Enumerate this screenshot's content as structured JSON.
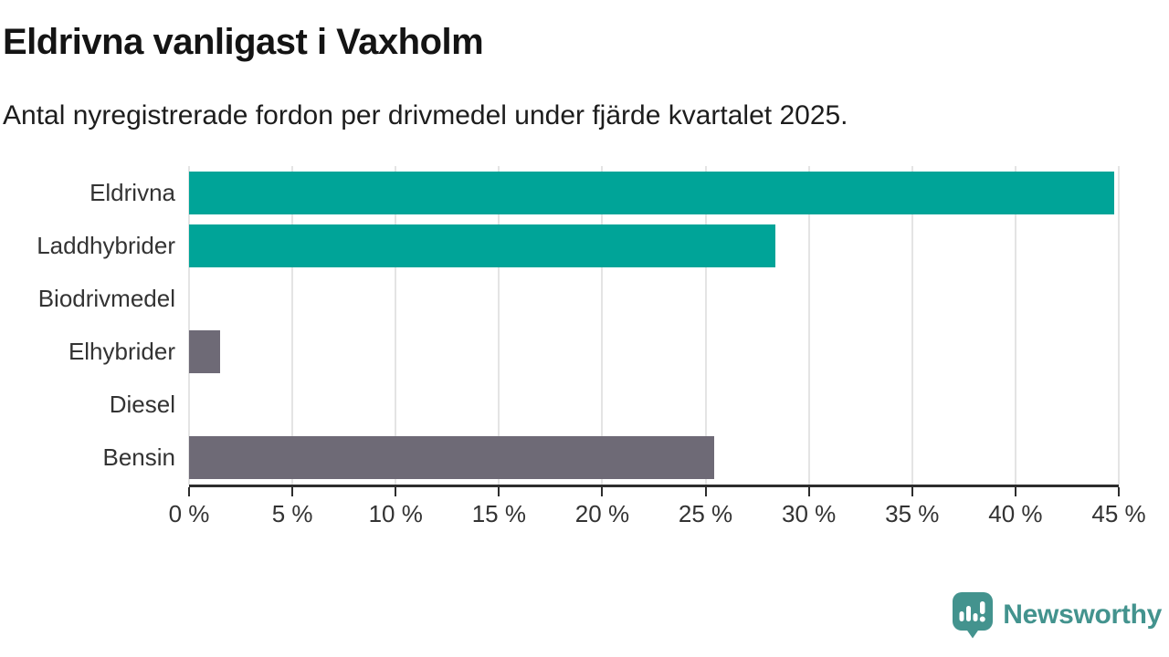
{
  "header": {
    "title": "Eldrivna vanligast i Vaxholm",
    "subtitle": "Antal nyregistrerade fordon per drivmedel under fjärde kvartalet 2025."
  },
  "chart_data": {
    "type": "bar",
    "orientation": "horizontal",
    "title": "Eldrivna vanligast i Vaxholm",
    "subtitle": "Antal nyregistrerade fordon per drivmedel under fjärde kvartalet 2025.",
    "categories": [
      "Eldrivna",
      "Laddhybrider",
      "Biodrivmedel",
      "Elhybrider",
      "Diesel",
      "Bensin"
    ],
    "values": [
      44.8,
      28.4,
      0,
      1.5,
      0,
      25.4
    ],
    "unit": "%",
    "bar_colors": [
      "#00a498",
      "#00a498",
      "#6e6a76",
      "#6e6a76",
      "#6e6a76",
      "#6e6a76"
    ],
    "series_colors": {
      "electric": "#00a498",
      "fossil": "#6e6a76"
    },
    "xlim": [
      0,
      45
    ],
    "x_ticks": [
      0,
      5,
      10,
      15,
      20,
      25,
      30,
      35,
      40,
      45
    ],
    "x_tick_labels": [
      "0 %",
      "5 %",
      "10 %",
      "15 %",
      "20 %",
      "25 %",
      "30 %",
      "35 %",
      "40 %",
      "45 %"
    ],
    "grid": "vertical",
    "grid_color": "#e4e4e4",
    "axis_color": "#2d2d2d",
    "legend": "none",
    "value_labels": "none"
  },
  "branding": {
    "logo_text": "Newsworthy",
    "logo_icon": "speech-bubble-bar-chart-icon",
    "color": "#43938e"
  }
}
